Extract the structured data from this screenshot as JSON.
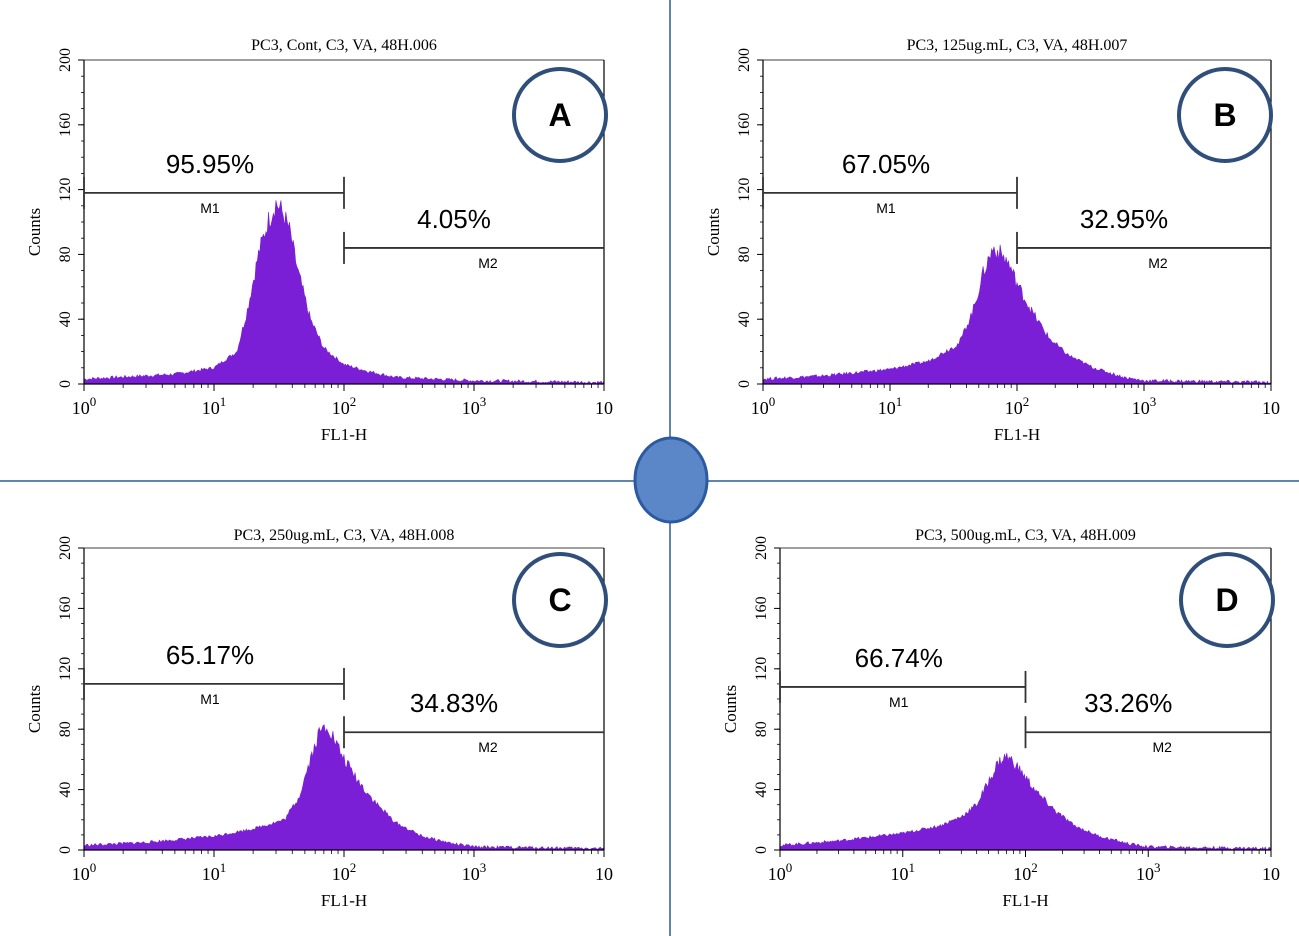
{
  "colors": {
    "histogram_fill": "#7a1fd6",
    "axis": "#000000",
    "divider": "#2f5f8f",
    "center_circle_fill": "#5b86c8",
    "center_circle_stroke": "#2c5aa0",
    "badge_stroke": "#2f4f7a"
  },
  "chart_data": [
    {
      "type": "area",
      "panel": "A",
      "title": "PC3,  Cont, C3, VA, 48H.006",
      "xlabel": "FL1-H",
      "ylabel": "Counts",
      "x_scale": "log",
      "xlim": [
        1,
        10000
      ],
      "ylim": [
        0,
        200
      ],
      "x_ticks": [
        {
          "base": "10",
          "exp": "0"
        },
        {
          "base": "10",
          "exp": "1"
        },
        {
          "base": "10",
          "exp": "2"
        },
        {
          "base": "10",
          "exp": "3"
        },
        {
          "base": "10",
          "exp": ""
        }
      ],
      "y_ticks": [
        "0",
        "40",
        "80",
        "120",
        "160",
        "200"
      ],
      "markers": [
        {
          "name": "M1",
          "x_start": 1,
          "x_end": 100,
          "y": 118,
          "percent": "95.95%"
        },
        {
          "name": "M2",
          "x_start": 100,
          "x_end": 10000,
          "y": 84,
          "percent": "4.05%"
        }
      ],
      "histogram": {
        "baseline": 3,
        "points": [
          [
            1,
            3
          ],
          [
            5,
            6
          ],
          [
            10,
            10
          ],
          [
            15,
            20
          ],
          [
            18,
            45
          ],
          [
            22,
            80
          ],
          [
            26,
            100
          ],
          [
            30,
            112
          ],
          [
            34,
            105
          ],
          [
            38,
            95
          ],
          [
            44,
            70
          ],
          [
            55,
            40
          ],
          [
            70,
            22
          ],
          [
            100,
            12
          ],
          [
            150,
            8
          ],
          [
            250,
            4
          ],
          [
            1000,
            2
          ],
          [
            10000,
            1
          ]
        ]
      }
    },
    {
      "type": "area",
      "panel": "B",
      "title": "PC3,  125ug.mL, C3, VA, 48H.007",
      "xlabel": "FL1-H",
      "ylabel": "Counts",
      "x_scale": "log",
      "xlim": [
        1,
        10000
      ],
      "ylim": [
        0,
        200
      ],
      "x_ticks": [
        {
          "base": "10",
          "exp": "0"
        },
        {
          "base": "10",
          "exp": "1"
        },
        {
          "base": "10",
          "exp": "2"
        },
        {
          "base": "10",
          "exp": "3"
        },
        {
          "base": "10",
          "exp": ""
        }
      ],
      "y_ticks": [
        "0",
        "40",
        "80",
        "120",
        "160",
        "200"
      ],
      "markers": [
        {
          "name": "M1",
          "x_start": 1,
          "x_end": 100,
          "y": 118,
          "percent": "67.05%"
        },
        {
          "name": "M2",
          "x_start": 100,
          "x_end": 10000,
          "y": 84,
          "percent": "32.95%"
        }
      ],
      "histogram": {
        "baseline": 3,
        "points": [
          [
            1,
            3
          ],
          [
            3,
            5
          ],
          [
            10,
            9
          ],
          [
            20,
            14
          ],
          [
            35,
            25
          ],
          [
            45,
            45
          ],
          [
            55,
            70
          ],
          [
            65,
            84
          ],
          [
            75,
            80
          ],
          [
            85,
            75
          ],
          [
            100,
            62
          ],
          [
            130,
            45
          ],
          [
            180,
            28
          ],
          [
            250,
            18
          ],
          [
            400,
            10
          ],
          [
            700,
            4
          ],
          [
            1000,
            2
          ],
          [
            10000,
            1
          ]
        ]
      }
    },
    {
      "type": "area",
      "panel": "C",
      "title": "PC3,  250ug.mL, C3, VA, 48H.008",
      "xlabel": "FL1-H",
      "ylabel": "Counts",
      "x_scale": "log",
      "xlim": [
        1,
        10000
      ],
      "ylim": [
        0,
        200
      ],
      "x_ticks": [
        {
          "base": "10",
          "exp": "0"
        },
        {
          "base": "10",
          "exp": "1"
        },
        {
          "base": "10",
          "exp": "2"
        },
        {
          "base": "10",
          "exp": "3"
        },
        {
          "base": "10",
          "exp": ""
        }
      ],
      "y_ticks": [
        "0",
        "40",
        "80",
        "120",
        "160",
        "200"
      ],
      "markers": [
        {
          "name": "M1",
          "x_start": 1,
          "x_end": 100,
          "y": 110,
          "percent": "65.17%"
        },
        {
          "name": "M2",
          "x_start": 100,
          "x_end": 10000,
          "y": 78,
          "percent": "34.83%"
        }
      ],
      "histogram": {
        "baseline": 3,
        "points": [
          [
            1,
            3
          ],
          [
            3,
            5
          ],
          [
            10,
            9
          ],
          [
            20,
            14
          ],
          [
            35,
            20
          ],
          [
            45,
            35
          ],
          [
            55,
            60
          ],
          [
            65,
            78
          ],
          [
            75,
            83
          ],
          [
            85,
            72
          ],
          [
            100,
            60
          ],
          [
            130,
            45
          ],
          [
            180,
            30
          ],
          [
            250,
            18
          ],
          [
            400,
            9
          ],
          [
            700,
            4
          ],
          [
            1000,
            2
          ],
          [
            10000,
            1
          ]
        ]
      }
    },
    {
      "type": "area",
      "panel": "D",
      "title": "PC3,  500ug.mL, C3, VA, 48H.009",
      "xlabel": "FL1-H",
      "ylabel": "Counts",
      "x_scale": "log",
      "xlim": [
        1,
        10000
      ],
      "ylim": [
        0,
        200
      ],
      "x_ticks": [
        {
          "base": "10",
          "exp": "0"
        },
        {
          "base": "10",
          "exp": "1"
        },
        {
          "base": "10",
          "exp": "2"
        },
        {
          "base": "10",
          "exp": "3"
        },
        {
          "base": "10",
          "exp": ""
        }
      ],
      "y_ticks": [
        "0",
        "40",
        "80",
        "120",
        "160",
        "200"
      ],
      "markers": [
        {
          "name": "M1",
          "x_start": 1,
          "x_end": 100,
          "y": 108,
          "percent": "66.74%"
        },
        {
          "name": "M2",
          "x_start": 100,
          "x_end": 10000,
          "y": 78,
          "percent": "33.26%"
        }
      ],
      "histogram": {
        "baseline": 3,
        "points": [
          [
            1,
            3
          ],
          [
            3,
            6
          ],
          [
            10,
            11
          ],
          [
            20,
            16
          ],
          [
            30,
            22
          ],
          [
            40,
            30
          ],
          [
            50,
            45
          ],
          [
            60,
            58
          ],
          [
            70,
            62
          ],
          [
            80,
            58
          ],
          [
            100,
            48
          ],
          [
            130,
            36
          ],
          [
            180,
            25
          ],
          [
            250,
            16
          ],
          [
            400,
            9
          ],
          [
            700,
            4
          ],
          [
            1000,
            2
          ],
          [
            10000,
            1
          ]
        ]
      }
    }
  ],
  "panel_badges": [
    "A",
    "B",
    "C",
    "D"
  ]
}
